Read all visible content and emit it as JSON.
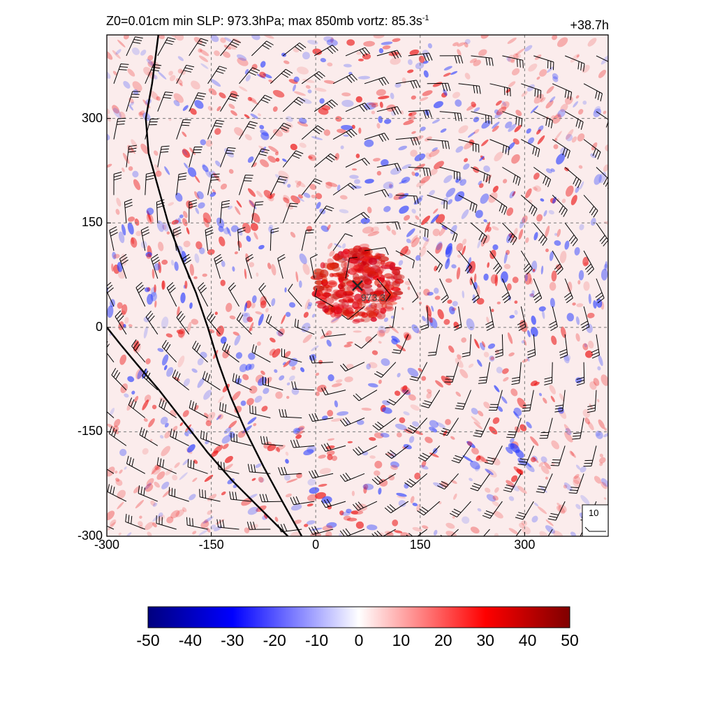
{
  "header": {
    "title_main": "Z0=0.01cm  min SLP: 973.3hPa; max 850mb vortz:  85.3s",
    "title_exp": "-1",
    "time_label": "+38.7h"
  },
  "chart_data": {
    "type": "heatmap",
    "title": "Z0=0.01cm  min SLP: 973.3hPa; max 850mb vortz:  85.3s-1",
    "xlabel": "",
    "ylabel": "",
    "xlim": [
      -300,
      420
    ],
    "ylim": [
      -300,
      420
    ],
    "xticks": [
      -300,
      -150,
      0,
      150,
      300
    ],
    "yticks": [
      -300,
      -150,
      0,
      150,
      300
    ],
    "xtick_labels": [
      "-300",
      "-150",
      "0",
      "150",
      "300"
    ],
    "ytick_labels": [
      "-300",
      "-150",
      "0",
      "150",
      "300"
    ],
    "grid": true,
    "field": "850mb relative vorticity",
    "colorbar": {
      "min": -50,
      "max": 50,
      "ticks": [
        -50,
        -40,
        -30,
        -20,
        -10,
        0,
        10,
        20,
        30,
        40,
        50
      ],
      "tick_labels": [
        "-50",
        "-40",
        "-30",
        "-20",
        "-10",
        "0",
        "10",
        "20",
        "30",
        "40",
        "50"
      ],
      "colors": [
        "#00007f",
        "#0000ff",
        "#ffffff",
        "#ff0000",
        "#7f0000"
      ]
    },
    "center": {
      "x": 60,
      "y": 60,
      "label": "973.3",
      "marker": "x"
    },
    "reference_barb": {
      "label": "10"
    },
    "coastlines": [
      [
        [
          -226,
          420
        ],
        [
          -235,
          350
        ],
        [
          -244,
          300
        ],
        [
          -240,
          250
        ],
        [
          -226,
          200
        ],
        [
          -212,
          150
        ],
        [
          -193,
          100
        ],
        [
          -172,
          50
        ],
        [
          -155,
          0
        ],
        [
          -140,
          -50
        ],
        [
          -122,
          -100
        ],
        [
          -100,
          -150
        ],
        [
          -75,
          -200
        ],
        [
          -48,
          -250
        ],
        [
          -20,
          -300
        ]
      ],
      [
        [
          -300,
          0
        ],
        [
          -280,
          -25
        ],
        [
          -255,
          -55
        ],
        [
          -225,
          -90
        ],
        [
          -190,
          -135
        ],
        [
          -155,
          -180
        ],
        [
          -120,
          -220
        ],
        [
          -85,
          -255
        ],
        [
          -55,
          -285
        ],
        [
          -40,
          -300
        ]
      ]
    ],
    "circulation": "cyclonic (counterclockwise) wind barbs around storm center"
  }
}
